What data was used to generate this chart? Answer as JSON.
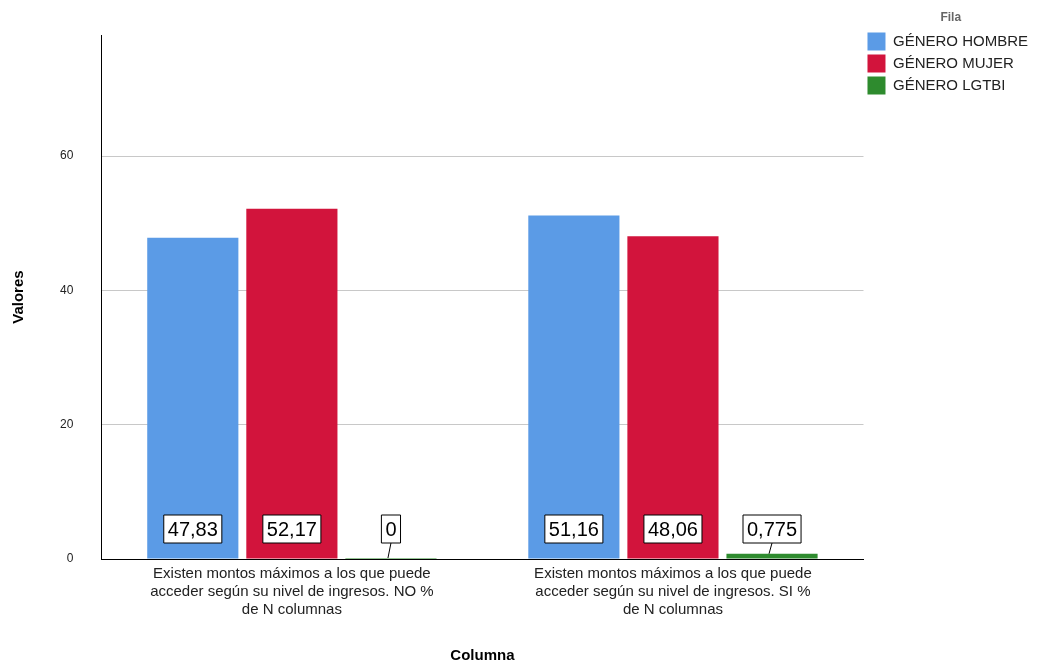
{
  "chart_data": {
    "type": "bar",
    "xlabel": "Columna",
    "ylabel": "Valores",
    "legend_title": "Fila",
    "categories": [
      "Existen montos máximos a los que puede acceder según su nivel de ingresos. NO % de N columnas",
      "Existen montos máximos a los que puede acceder según su nivel de ingresos. SI % de N columnas"
    ],
    "series": [
      {
        "name": "GÉNERO HOMBRE",
        "color": "#5b9be6",
        "values": [
          47.83,
          51.16
        ],
        "value_labels": [
          "47,83",
          "51,16"
        ]
      },
      {
        "name": "GÉNERO MUJER",
        "color": "#d2143c",
        "values": [
          52.17,
          48.06
        ],
        "value_labels": [
          "52,17",
          "48,06"
        ]
      },
      {
        "name": "GÉNERO LGTBI",
        "color": "#2e8b2e",
        "values": [
          0,
          0.775
        ],
        "value_labels": [
          "0",
          "0,775"
        ]
      }
    ],
    "ylim": [
      0,
      78
    ],
    "yticks": [
      0,
      20,
      40,
      60
    ],
    "grid": "y",
    "legend": "top right"
  }
}
